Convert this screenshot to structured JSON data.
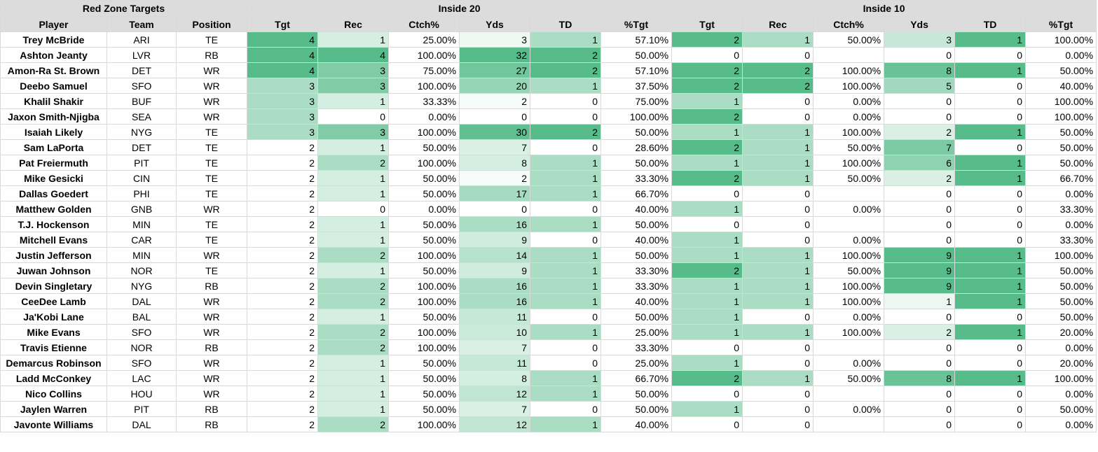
{
  "title": "Red Zone Targets",
  "groups": [
    "Inside 20",
    "Inside 10"
  ],
  "columns": [
    "Player",
    "Team",
    "Position",
    "Tgt",
    "Rec",
    "Ctch%",
    "Yds",
    "TD",
    "%Tgt",
    "Tgt",
    "Rec",
    "Ctch%",
    "Yds",
    "TD",
    "%Tgt"
  ],
  "rows": [
    {
      "player": "Trey McBride",
      "team": "ARI",
      "pos": "TE",
      "i20": [
        "4",
        "1",
        "25.00%",
        "3",
        "1",
        "57.10%"
      ],
      "i10": [
        "2",
        "1",
        "50.00%",
        "3",
        "1",
        "100.00%"
      ]
    },
    {
      "player": "Ashton Jeanty",
      "team": "LVR",
      "pos": "RB",
      "i20": [
        "4",
        "4",
        "100.00%",
        "32",
        "2",
        "50.00%"
      ],
      "i10": [
        "0",
        "0",
        "",
        "0",
        "0",
        "0.00%"
      ]
    },
    {
      "player": "Amon-Ra St. Brown",
      "team": "DET",
      "pos": "WR",
      "i20": [
        "4",
        "3",
        "75.00%",
        "27",
        "2",
        "57.10%"
      ],
      "i10": [
        "2",
        "2",
        "100.00%",
        "8",
        "1",
        "50.00%"
      ]
    },
    {
      "player": "Deebo Samuel",
      "team": "SFO",
      "pos": "WR",
      "i20": [
        "3",
        "3",
        "100.00%",
        "20",
        "1",
        "37.50%"
      ],
      "i10": [
        "2",
        "2",
        "100.00%",
        "5",
        "0",
        "40.00%"
      ]
    },
    {
      "player": "Khalil Shakir",
      "team": "BUF",
      "pos": "WR",
      "i20": [
        "3",
        "1",
        "33.33%",
        "2",
        "0",
        "75.00%"
      ],
      "i10": [
        "1",
        "0",
        "0.00%",
        "0",
        "0",
        "100.00%"
      ]
    },
    {
      "player": "Jaxon Smith-Njigba",
      "team": "SEA",
      "pos": "WR",
      "i20": [
        "3",
        "0",
        "0.00%",
        "0",
        "0",
        "100.00%"
      ],
      "i10": [
        "2",
        "0",
        "0.00%",
        "0",
        "0",
        "100.00%"
      ]
    },
    {
      "player": "Isaiah Likely",
      "team": "NYG",
      "pos": "TE",
      "i20": [
        "3",
        "3",
        "100.00%",
        "30",
        "2",
        "50.00%"
      ],
      "i10": [
        "1",
        "1",
        "100.00%",
        "2",
        "1",
        "50.00%"
      ]
    },
    {
      "player": "Sam LaPorta",
      "team": "DET",
      "pos": "TE",
      "i20": [
        "2",
        "1",
        "50.00%",
        "7",
        "0",
        "28.60%"
      ],
      "i10": [
        "2",
        "1",
        "50.00%",
        "7",
        "0",
        "50.00%"
      ]
    },
    {
      "player": "Pat Freiermuth",
      "team": "PIT",
      "pos": "TE",
      "i20": [
        "2",
        "2",
        "100.00%",
        "8",
        "1",
        "50.00%"
      ],
      "i10": [
        "1",
        "1",
        "100.00%",
        "6",
        "1",
        "50.00%"
      ]
    },
    {
      "player": "Mike Gesicki",
      "team": "CIN",
      "pos": "TE",
      "i20": [
        "2",
        "1",
        "50.00%",
        "2",
        "1",
        "33.30%"
      ],
      "i10": [
        "2",
        "1",
        "50.00%",
        "2",
        "1",
        "66.70%"
      ]
    },
    {
      "player": "Dallas Goedert",
      "team": "PHI",
      "pos": "TE",
      "i20": [
        "2",
        "1",
        "50.00%",
        "17",
        "1",
        "66.70%"
      ],
      "i10": [
        "0",
        "0",
        "",
        "0",
        "0",
        "0.00%"
      ]
    },
    {
      "player": "Matthew Golden",
      "team": "GNB",
      "pos": "WR",
      "i20": [
        "2",
        "0",
        "0.00%",
        "0",
        "0",
        "40.00%"
      ],
      "i10": [
        "1",
        "0",
        "0.00%",
        "0",
        "0",
        "33.30%"
      ]
    },
    {
      "player": "T.J. Hockenson",
      "team": "MIN",
      "pos": "TE",
      "i20": [
        "2",
        "1",
        "50.00%",
        "16",
        "1",
        "50.00%"
      ],
      "i10": [
        "0",
        "0",
        "",
        "0",
        "0",
        "0.00%"
      ]
    },
    {
      "player": "Mitchell Evans",
      "team": "CAR",
      "pos": "TE",
      "i20": [
        "2",
        "1",
        "50.00%",
        "9",
        "0",
        "40.00%"
      ],
      "i10": [
        "1",
        "0",
        "0.00%",
        "0",
        "0",
        "33.30%"
      ]
    },
    {
      "player": "Justin Jefferson",
      "team": "MIN",
      "pos": "WR",
      "i20": [
        "2",
        "2",
        "100.00%",
        "14",
        "1",
        "50.00%"
      ],
      "i10": [
        "1",
        "1",
        "100.00%",
        "9",
        "1",
        "100.00%"
      ]
    },
    {
      "player": "Juwan Johnson",
      "team": "NOR",
      "pos": "TE",
      "i20": [
        "2",
        "1",
        "50.00%",
        "9",
        "1",
        "33.30%"
      ],
      "i10": [
        "2",
        "1",
        "50.00%",
        "9",
        "1",
        "50.00%"
      ]
    },
    {
      "player": "Devin Singletary",
      "team": "NYG",
      "pos": "RB",
      "i20": [
        "2",
        "2",
        "100.00%",
        "16",
        "1",
        "33.30%"
      ],
      "i10": [
        "1",
        "1",
        "100.00%",
        "9",
        "1",
        "50.00%"
      ]
    },
    {
      "player": "CeeDee Lamb",
      "team": "DAL",
      "pos": "WR",
      "i20": [
        "2",
        "2",
        "100.00%",
        "16",
        "1",
        "40.00%"
      ],
      "i10": [
        "1",
        "1",
        "100.00%",
        "1",
        "1",
        "50.00%"
      ]
    },
    {
      "player": "Ja'Kobi Lane",
      "team": "BAL",
      "pos": "WR",
      "i20": [
        "2",
        "1",
        "50.00%",
        "11",
        "0",
        "50.00%"
      ],
      "i10": [
        "1",
        "0",
        "0.00%",
        "0",
        "0",
        "50.00%"
      ]
    },
    {
      "player": "Mike Evans",
      "team": "SFO",
      "pos": "WR",
      "i20": [
        "2",
        "2",
        "100.00%",
        "10",
        "1",
        "25.00%"
      ],
      "i10": [
        "1",
        "1",
        "100.00%",
        "2",
        "1",
        "20.00%"
      ]
    },
    {
      "player": "Travis Etienne",
      "team": "NOR",
      "pos": "RB",
      "i20": [
        "2",
        "2",
        "100.00%",
        "7",
        "0",
        "33.30%"
      ],
      "i10": [
        "0",
        "0",
        "",
        "0",
        "0",
        "0.00%"
      ]
    },
    {
      "player": "Demarcus Robinson",
      "team": "SFO",
      "pos": "WR",
      "i20": [
        "2",
        "1",
        "50.00%",
        "11",
        "0",
        "25.00%"
      ],
      "i10": [
        "1",
        "0",
        "0.00%",
        "0",
        "0",
        "20.00%"
      ]
    },
    {
      "player": "Ladd McConkey",
      "team": "LAC",
      "pos": "WR",
      "i20": [
        "2",
        "1",
        "50.00%",
        "8",
        "1",
        "66.70%"
      ],
      "i10": [
        "2",
        "1",
        "50.00%",
        "8",
        "1",
        "100.00%"
      ]
    },
    {
      "player": "Nico Collins",
      "team": "HOU",
      "pos": "WR",
      "i20": [
        "2",
        "1",
        "50.00%",
        "12",
        "1",
        "50.00%"
      ],
      "i10": [
        "0",
        "0",
        "",
        "0",
        "0",
        "0.00%"
      ]
    },
    {
      "player": "Jaylen Warren",
      "team": "PIT",
      "pos": "RB",
      "i20": [
        "2",
        "1",
        "50.00%",
        "7",
        "0",
        "50.00%"
      ],
      "i10": [
        "1",
        "0",
        "0.00%",
        "0",
        "0",
        "50.00%"
      ]
    },
    {
      "player": "Javonte Williams",
      "team": "DAL",
      "pos": "RB",
      "i20": [
        "2",
        "2",
        "100.00%",
        "12",
        "1",
        "40.00%"
      ],
      "i10": [
        "0",
        "0",
        "",
        "0",
        "0",
        "0.00%"
      ]
    }
  ],
  "colors": {
    "header_bg": "#dcdcdc",
    "grid_line": "#d9d9d9",
    "scale_low": "#ffffff",
    "scale_high": "#57bb8a"
  }
}
